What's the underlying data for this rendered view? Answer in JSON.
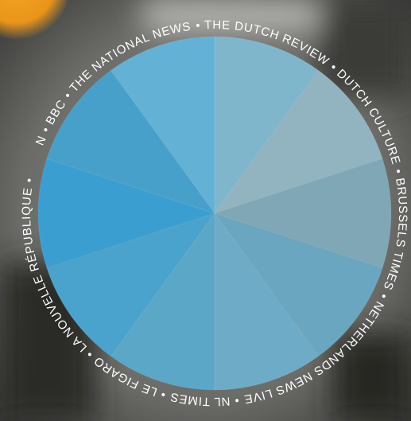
{
  "ring_text": {
    "separator": "•",
    "items": [
      "CNN",
      "BBC",
      "THE NATIONAL NEWS",
      "THE DUTCH REVIEW",
      "DUTCH CULTURE",
      "BRUSSELS TIMES",
      "NETHERLANDS NEWS LIVE",
      "NL TIMES",
      "LE FIGARO",
      "LA NOUVELLE RÉPUBLIQUE"
    ]
  }
}
